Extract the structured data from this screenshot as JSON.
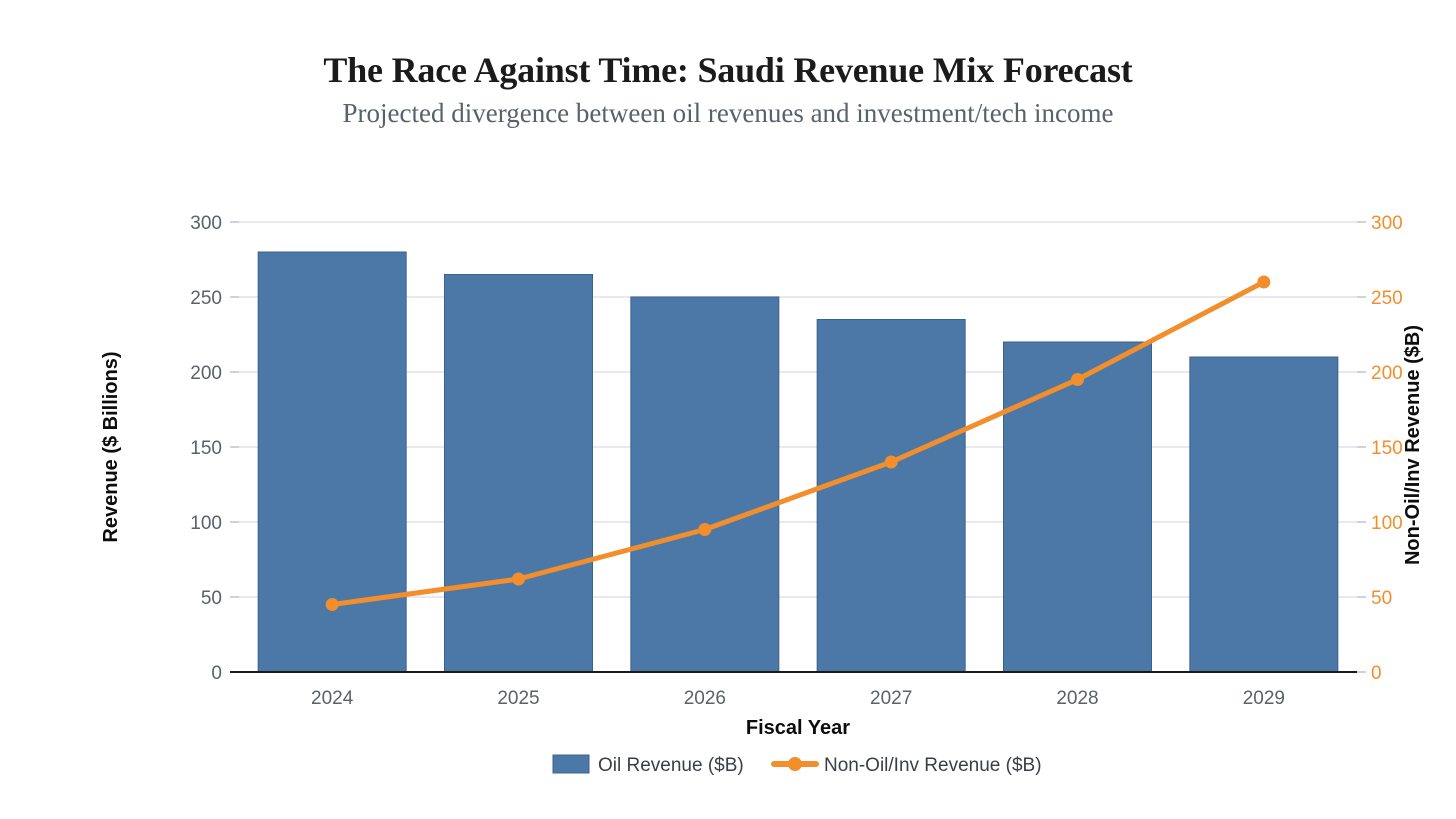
{
  "header": {
    "title": "The Race Against Time: Saudi Revenue Mix Forecast",
    "subtitle": "Projected divergence between oil revenues and investment/tech income"
  },
  "chart_data": {
    "type": "combo",
    "categories": [
      "2024",
      "2025",
      "2026",
      "2027",
      "2028",
      "2029"
    ],
    "series": [
      {
        "name": "Oil Revenue ($B)",
        "kind": "bar",
        "axis": "left",
        "color": "#4C78A8",
        "stroke": "#3b6191",
        "values": [
          280,
          265,
          250,
          235,
          220,
          210
        ]
      },
      {
        "name": "Non-Oil/Inv Revenue ($B)",
        "kind": "line",
        "axis": "right",
        "color": "#F28E2B",
        "values": [
          45,
          62,
          95,
          140,
          195,
          260
        ]
      }
    ],
    "xlabel": "Fiscal Year",
    "ylabel_left": "Revenue ($ Billions)",
    "ylabel_right": "Non-Oil/Inv Revenue ($B)",
    "ylim": [
      0,
      300
    ],
    "y_ticks_left": [
      0,
      50,
      100,
      150,
      200,
      250,
      300
    ],
    "y_ticks_right": [
      0,
      50,
      100,
      150,
      200,
      250,
      300
    ],
    "grid": "horizontal",
    "legend_position": "bottom"
  },
  "colors": {
    "bar": "#4C78A8",
    "bar_stroke": "#3b6191",
    "line": "#F28E2B",
    "grid_line": "#e7e9ee",
    "axis_line": "#1a1a1a",
    "tick_mark": "#cfd3d9",
    "tick_text": "#5a6268",
    "right_tick_text": "#F28E2B",
    "background": "#ffffff"
  }
}
